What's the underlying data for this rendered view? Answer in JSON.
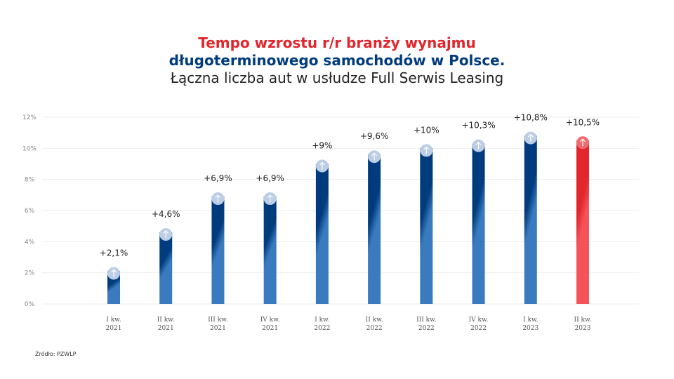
{
  "title": {
    "line1": "Tempo wzrostu r/r branży wynajmu",
    "line2": "długoterminowego samochodów w Polsce.",
    "line3": "Łączna liczba aut w usłudze Full Serwis Leasing"
  },
  "source": "Źródło: PZWLP",
  "chart_data": {
    "type": "bar",
    "categories": [
      [
        "I kw.",
        "2021"
      ],
      [
        "II kw.",
        "2021"
      ],
      [
        "III kw.",
        "2021"
      ],
      [
        "IV kw.",
        "2021"
      ],
      [
        "I kw.",
        "2022"
      ],
      [
        "II kw.",
        "2022"
      ],
      [
        "III kw.",
        "2022"
      ],
      [
        "IV kw.",
        "2022"
      ],
      [
        "I kw.",
        "2023"
      ],
      [
        "II kw.",
        "2023"
      ]
    ],
    "values": [
      2.1,
      4.6,
      6.9,
      6.9,
      9,
      9.6,
      10,
      10.3,
      10.8,
      10.5
    ],
    "data_labels": [
      "+2,1%",
      "+4,6%",
      "+6,9%",
      "+6,9%",
      "+9%",
      "+9,6%",
      "+10%",
      "+10,3%",
      "+10,8%",
      "+10,5%"
    ],
    "yticks": [
      "0%",
      "2%",
      "4%",
      "6%",
      "8%",
      "10%",
      "12%"
    ],
    "ylim": [
      0,
      12
    ],
    "grid": true,
    "colors": {
      "bar_top": "#003c7d",
      "bar_bottom": "#3a7bc0",
      "highlight_top": "#e1262c",
      "highlight_bottom": "#f5535a",
      "badge": "#bccde6"
    },
    "highlight_index": 9,
    "icon": "arrow-up-icon"
  }
}
